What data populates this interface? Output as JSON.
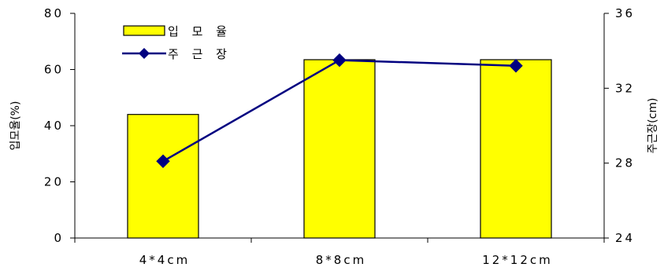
{
  "chart_data": {
    "type": "bar+line",
    "categories": [
      "4*4cm",
      "8*8cm",
      "12*12cm"
    ],
    "series": [
      {
        "name": "입 모 율",
        "type": "bar",
        "axis": "left",
        "values": [
          44,
          63.5,
          63.5
        ],
        "color": "#ffff00",
        "edge_color": "#000000"
      },
      {
        "name": "주 근 장",
        "type": "line",
        "axis": "right",
        "values": [
          28.1,
          33.5,
          33.2
        ],
        "color": "#000080",
        "marker": "diamond"
      }
    ],
    "y_left": {
      "label": "입모율(%)",
      "ylim": [
        0,
        80
      ],
      "ticks": [
        "0",
        "20",
        "40",
        "60",
        "80"
      ]
    },
    "y_right": {
      "label": "주근장(cm)",
      "ylim": [
        24,
        36
      ],
      "ticks": [
        "24",
        "28",
        "32",
        "36"
      ]
    },
    "grid": false,
    "legend_position": "top-left"
  }
}
